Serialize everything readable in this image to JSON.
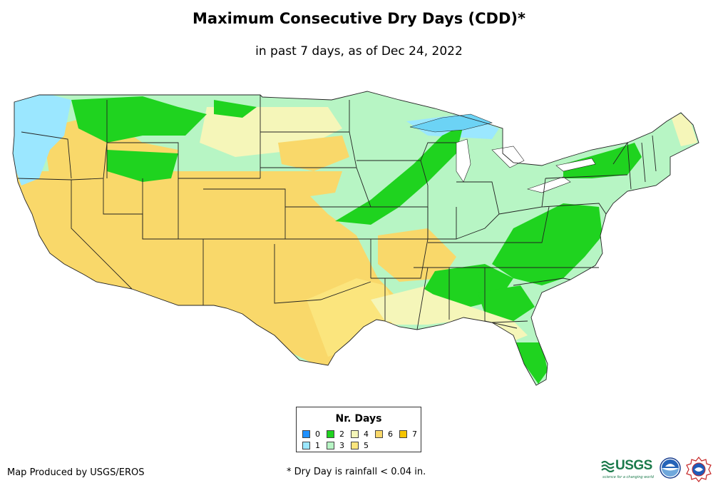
{
  "title": "Maximum Consecutive Dry Days (CDD)*",
  "subtitle": "in past 7 days, as of Dec 24, 2022",
  "legend": {
    "title": "Nr. Days",
    "items": [
      {
        "label": "0",
        "color": "#1e90ff"
      },
      {
        "label": "1",
        "color": "#9be7ff"
      },
      {
        "label": "2",
        "color": "#1fd31f"
      },
      {
        "label": "3",
        "color": "#b7f5c4"
      },
      {
        "label": "4",
        "color": "#f5f6b9"
      },
      {
        "label": "5",
        "color": "#fbe57d"
      },
      {
        "label": "6",
        "color": "#f9d86a"
      },
      {
        "label": "7",
        "color": "#f5c400"
      }
    ]
  },
  "credit": "Map Produced by USGS/EROS",
  "footnote": "* Dry Day is rainfall < 0.04 in.",
  "logos": {
    "usgs": "USGS",
    "usgs_tagline": "science for a changing world"
  },
  "colors": {
    "state_border": "#222222",
    "lake": "#6cd3f5"
  }
}
